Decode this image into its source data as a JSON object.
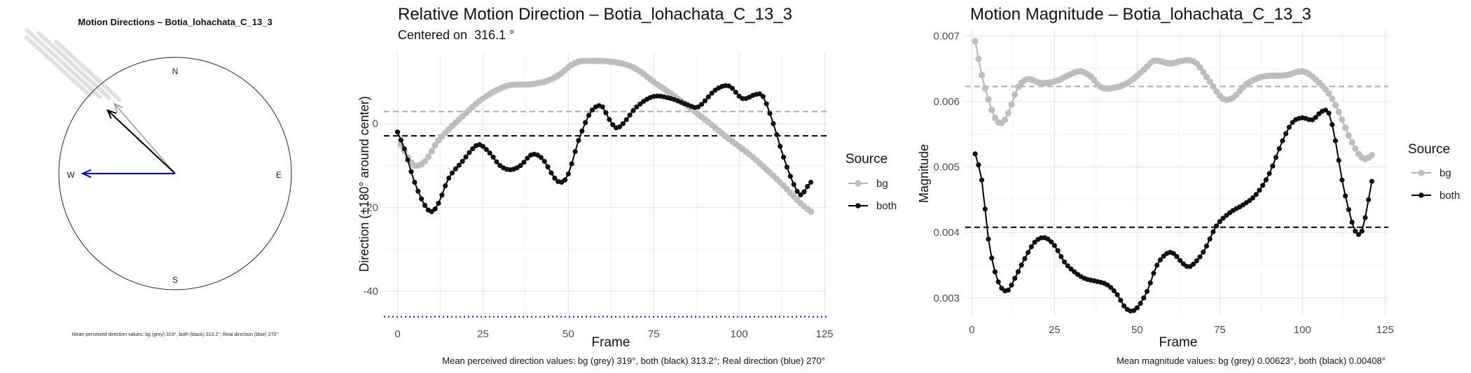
{
  "chart_data": [
    {
      "type": "compass",
      "title": "Motion Directions – Botia_lohachata_C_13_3",
      "compass_labels": {
        "n": "N",
        "e": "E",
        "s": "S",
        "w": "W"
      },
      "arrows": [
        {
          "name": "bg",
          "angle_deg": 319,
          "color": "#aaaaaa"
        },
        {
          "name": "both",
          "angle_deg": 313.2,
          "color": "#000000"
        },
        {
          "name": "real",
          "angle_deg": 270,
          "color": "#0000cc"
        }
      ],
      "caption": "Mean perceived direction values: bg (grey) 319°, both (black) 313.2°; Real direction (blue) 270°"
    },
    {
      "type": "line",
      "title": "Relative Motion Direction – Botia_lohachata_C_13_3",
      "subtitle": "Centered on  316.1 °",
      "xlabel": "Frame",
      "ylabel": "Direction (±180° around center)",
      "xlim": [
        -4,
        126
      ],
      "ylim": [
        -47,
        17
      ],
      "xticks": [
        0,
        25,
        50,
        75,
        100,
        125
      ],
      "yticks": [
        0,
        -20,
        -40
      ],
      "legend": {
        "title": "Source",
        "position": "right",
        "entries": [
          "bg",
          "both"
        ]
      },
      "series": [
        {
          "name": "bg",
          "color": "#b3b3b3",
          "knots": [
            [
              1,
              -5
            ],
            [
              3,
              -8
            ],
            [
              5,
              -10
            ],
            [
              8,
              -9
            ],
            [
              12,
              -4
            ],
            [
              18,
              1
            ],
            [
              25,
              6
            ],
            [
              32,
              9
            ],
            [
              40,
              9.5
            ],
            [
              46,
              11
            ],
            [
              52,
              14.5
            ],
            [
              57,
              15
            ],
            [
              65,
              14.5
            ],
            [
              70,
              13
            ],
            [
              75,
              10
            ],
            [
              82,
              6
            ],
            [
              90,
              1
            ],
            [
              96,
              -3
            ],
            [
              104,
              -8
            ],
            [
              112,
              -14
            ],
            [
              118,
              -19
            ],
            [
              121,
              -21
            ]
          ]
        },
        {
          "name": "both",
          "color": "#000000",
          "knots": [
            [
              0,
              -2
            ],
            [
              2,
              -6
            ],
            [
              5,
              -14
            ],
            [
              8,
              -19.5
            ],
            [
              10,
              -21
            ],
            [
              12,
              -19
            ],
            [
              15,
              -13
            ],
            [
              19,
              -9
            ],
            [
              22,
              -6
            ],
            [
              24,
              -5
            ],
            [
              27,
              -7
            ],
            [
              30,
              -10
            ],
            [
              33,
              -11
            ],
            [
              36,
              -10
            ],
            [
              39,
              -7.5
            ],
            [
              41,
              -7.5
            ],
            [
              43,
              -9
            ],
            [
              46,
              -13
            ],
            [
              48,
              -14
            ],
            [
              50,
              -12
            ],
            [
              53,
              -4
            ],
            [
              56,
              2
            ],
            [
              58,
              4
            ],
            [
              60,
              4
            ],
            [
              62,
              1
            ],
            [
              64,
              -1
            ],
            [
              66,
              0
            ],
            [
              70,
              4
            ],
            [
              75,
              6.5
            ],
            [
              80,
              6
            ],
            [
              85,
              4.5
            ],
            [
              88,
              4
            ],
            [
              93,
              8
            ],
            [
              97,
              9
            ],
            [
              101,
              6
            ],
            [
              105,
              7
            ],
            [
              107,
              6.5
            ],
            [
              110,
              0
            ],
            [
              113,
              -8
            ],
            [
              116,
              -14.5
            ],
            [
              118,
              -17
            ],
            [
              120,
              -15
            ],
            [
              121,
              -14
            ]
          ]
        }
      ],
      "reference_lines": [
        {
          "name": "bg",
          "y": 2.9,
          "color": "#aaaaaa",
          "style": "dashed"
        },
        {
          "name": "both",
          "y": -2.9,
          "color": "#000000",
          "style": "dashed"
        },
        {
          "name": "real",
          "y": -46.1,
          "color": "#0000ff",
          "style": "dotted"
        }
      ],
      "caption": "Mean perceived direction values: bg (grey) 319°, both (black) 313.2°; Real direction (blue) 270°"
    },
    {
      "type": "line",
      "title": "Motion Magnitude – Botia_lohachata_C_13_3",
      "xlabel": "Frame",
      "ylabel": "Magnitude",
      "xlim": [
        -2,
        126
      ],
      "ylim": [
        0.00272,
        0.0071
      ],
      "xticks": [
        0,
        25,
        50,
        75,
        100,
        125
      ],
      "yticks": [
        0.003,
        0.004,
        0.005,
        0.006,
        0.007
      ],
      "legend": {
        "title": "Source",
        "position": "right",
        "entries": [
          "bg",
          "both"
        ]
      },
      "series": [
        {
          "name": "bg",
          "color": "#b3b3b3",
          "knots": [
            [
              1,
              0.00692
            ],
            [
              3,
              0.0064
            ],
            [
              5,
              0.00603
            ],
            [
              7,
              0.00575
            ],
            [
              9,
              0.00567
            ],
            [
              11,
              0.00582
            ],
            [
              14,
              0.00622
            ],
            [
              17,
              0.00634
            ],
            [
              21,
              0.00628
            ],
            [
              26,
              0.00632
            ],
            [
              30,
              0.00642
            ],
            [
              33,
              0.00646
            ],
            [
              36,
              0.00638
            ],
            [
              39,
              0.00622
            ],
            [
              42,
              0.0062
            ],
            [
              47,
              0.00628
            ],
            [
              52,
              0.00648
            ],
            [
              55,
              0.00662
            ],
            [
              60,
              0.00658
            ],
            [
              65,
              0.00663
            ],
            [
              68,
              0.00658
            ],
            [
              72,
              0.0063
            ],
            [
              76,
              0.00604
            ],
            [
              79,
              0.00606
            ],
            [
              83,
              0.00626
            ],
            [
              88,
              0.00638
            ],
            [
              95,
              0.0064
            ],
            [
              100,
              0.00646
            ],
            [
              103,
              0.00638
            ],
            [
              108,
              0.00612
            ],
            [
              111,
              0.00584
            ],
            [
              114,
              0.00548
            ],
            [
              117,
              0.0052
            ],
            [
              119,
              0.00512
            ],
            [
              121,
              0.00518
            ]
          ]
        },
        {
          "name": "both",
          "color": "#000000",
          "knots": [
            [
              1,
              0.0052
            ],
            [
              3,
              0.0048
            ],
            [
              5,
              0.0039
            ],
            [
              7,
              0.0034
            ],
            [
              9,
              0.00315
            ],
            [
              11,
              0.00312
            ],
            [
              13,
              0.0033
            ],
            [
              16,
              0.0036
            ],
            [
              19,
              0.00385
            ],
            [
              22,
              0.00392
            ],
            [
              25,
              0.0038
            ],
            [
              28,
              0.00355
            ],
            [
              31,
              0.0034
            ],
            [
              34,
              0.0033
            ],
            [
              38,
              0.00325
            ],
            [
              41,
              0.0032
            ],
            [
              44,
              0.00305
            ],
            [
              46,
              0.00288
            ],
            [
              48,
              0.0028
            ],
            [
              50,
              0.00285
            ],
            [
              53,
              0.0031
            ],
            [
              56,
              0.0035
            ],
            [
              59,
              0.00368
            ],
            [
              61,
              0.00368
            ],
            [
              64,
              0.00352
            ],
            [
              66,
              0.00348
            ],
            [
              70,
              0.0037
            ],
            [
              74,
              0.0041
            ],
            [
              78,
              0.0043
            ],
            [
              82,
              0.00442
            ],
            [
              86,
              0.00458
            ],
            [
              90,
              0.0049
            ],
            [
              94,
              0.0054
            ],
            [
              97,
              0.00568
            ],
            [
              100,
              0.00575
            ],
            [
              103,
              0.00572
            ],
            [
              106,
              0.00585
            ],
            [
              108,
              0.00582
            ],
            [
              110,
              0.0054
            ],
            [
              112,
              0.0048
            ],
            [
              114,
              0.00435
            ],
            [
              116,
              0.00402
            ],
            [
              118,
              0.00402
            ],
            [
              120,
              0.0045
            ],
            [
              121,
              0.00478
            ]
          ]
        }
      ],
      "reference_lines": [
        {
          "name": "bg",
          "y": 0.00623,
          "color": "#aaaaaa",
          "style": "dashed"
        },
        {
          "name": "both",
          "y": 0.00408,
          "color": "#000000",
          "style": "dashed"
        }
      ],
      "caption": "Mean magnitude values: bg (grey) 0.00623°, both (black) 0.00408°"
    }
  ]
}
